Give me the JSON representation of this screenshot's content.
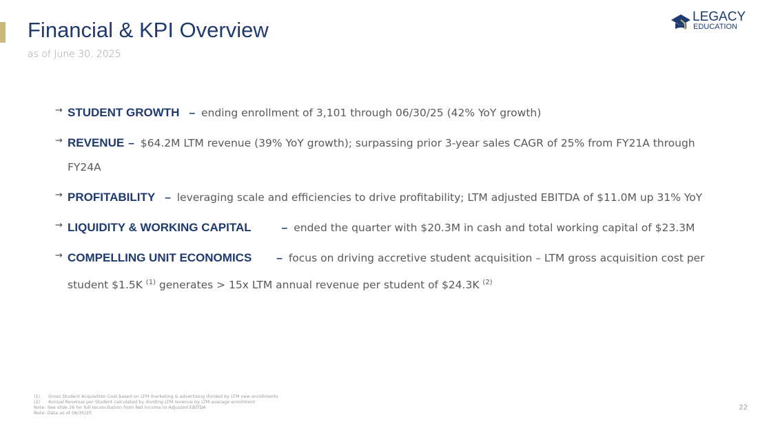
{
  "header": {
    "title": "Financial & KPI Overview",
    "subtitle": "as of June 30, 2025"
  },
  "logo": {
    "line1": "LEGACY",
    "line2": "EDUCATION"
  },
  "bullets": [
    {
      "label": "STUDENT GROWTH",
      "text": "ending enrollment of 3,101 through 06/30/25 (42% YoY growth)"
    },
    {
      "label": "REVENUE",
      "text": "$64.2M LTM revenue (39% YoY growth); surpassing prior 3-year sales CAGR of 25% from FY21A through FY24A"
    },
    {
      "label": "PROFITABILITY",
      "text": "leveraging scale and efficiencies to drive profitability; LTM adjusted EBITDA of $11.0M up 31% YoY"
    },
    {
      "label": "LIQUIDITY & WORKING CAPITAL",
      "text": "ended the quarter with $20.3M in cash and total working capital of $23.3M"
    },
    {
      "label": "COMPELLING UNIT ECONOMICS",
      "text_a": "focus on driving accretive student acquisition – LTM gross acquisition cost per student $1.5K",
      "sup1": "(1)",
      "text_b": "generates > 15x LTM annual revenue per student of $24.3K",
      "sup2": "(2)"
    }
  ],
  "dash": "–",
  "arrow": "→",
  "footnotes": [
    {
      "num": "(1)",
      "text": "Gross Student Acquisition Cost based on LTM marketing & advertising divided by LTM new enrollments"
    },
    {
      "num": "(2)",
      "text": "Annual Revenue per Student calculated by dividing LTM revenue by LTM average enrollment"
    }
  ],
  "notes": [
    "Note: See slide 26 for full reconciliation from Net Income to Adjusted EBITDA",
    "Note: Data as of 06/30/25"
  ],
  "page_number": "22"
}
